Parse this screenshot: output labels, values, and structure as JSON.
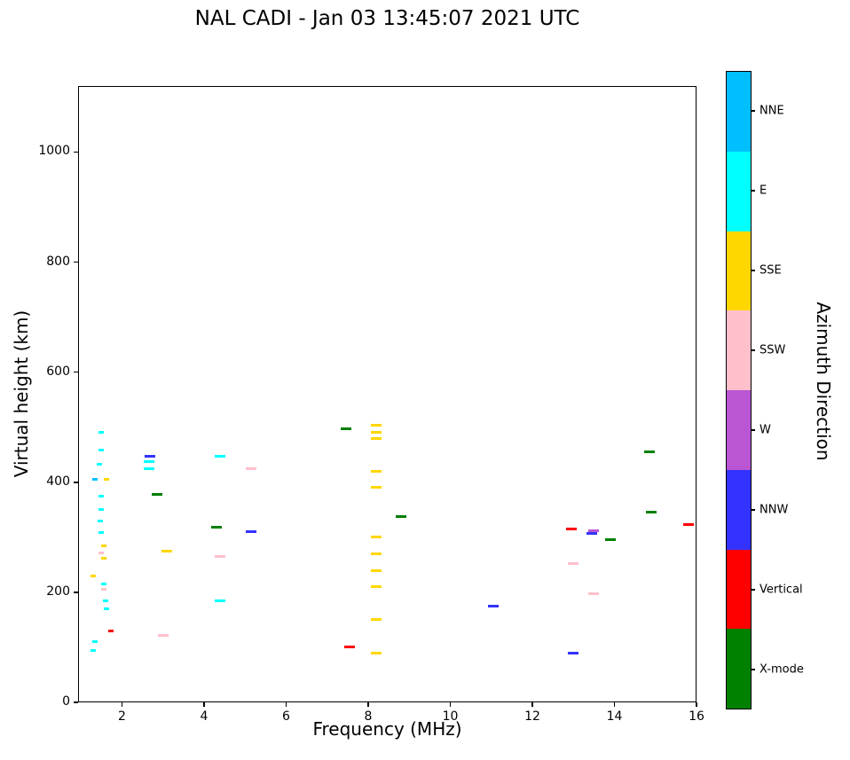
{
  "chart": {
    "title": "NAL CADI - Jan 03 13:45:07 2021 UTC",
    "xlabel": "Frequency (MHz)",
    "ylabel": "Virtual height (km)",
    "colorbar_label": "Azimuth Direction"
  },
  "chart_data": {
    "type": "scatter",
    "title": "NAL CADI - Jan 03 13:45:07 2021 UTC",
    "xlabel": "Frequency (MHz)",
    "ylabel": "Virtual height (km)",
    "xlim": [
      0.93,
      16
    ],
    "ylim": [
      0,
      1120
    ],
    "xticks": [
      2,
      4,
      6,
      8,
      10,
      12,
      14,
      16
    ],
    "yticks": [
      0,
      200,
      400,
      600,
      800,
      1000
    ],
    "grid": false,
    "marker": "horizontal-dash",
    "legend": {
      "title": "Azimuth Direction",
      "position": "right-colorbar",
      "entries": [
        {
          "label": "NNE",
          "color": "#00BFFF"
        },
        {
          "label": "E",
          "color": "#00FFFF"
        },
        {
          "label": "SSE",
          "color": "#FFD700"
        },
        {
          "label": "SSW",
          "color": "#FFC0CB"
        },
        {
          "label": "W",
          "color": "#BA55D3"
        },
        {
          "label": "NNW",
          "color": "#3333FF"
        },
        {
          "label": "Vertical",
          "color": "#FF0000"
        },
        {
          "label": "X-mode",
          "color": "#008000"
        }
      ]
    },
    "series": [
      {
        "name": "NNE",
        "color": "#00BFFF",
        "points": [
          [
            1.35,
            405
          ]
        ]
      },
      {
        "name": "E",
        "color": "#00FFFF",
        "points": [
          [
            1.5,
            490
          ],
          [
            1.5,
            458
          ],
          [
            1.45,
            432
          ],
          [
            1.5,
            375
          ],
          [
            1.5,
            350
          ],
          [
            1.48,
            330
          ],
          [
            1.5,
            308
          ],
          [
            1.55,
            215
          ],
          [
            1.6,
            185
          ],
          [
            1.62,
            170
          ],
          [
            1.35,
            110
          ],
          [
            1.3,
            95
          ],
          [
            2.66,
            438
          ],
          [
            2.66,
            425
          ],
          [
            4.4,
            447
          ],
          [
            4.4,
            185
          ]
        ]
      },
      {
        "name": "SSE",
        "color": "#FFD700",
        "points": [
          [
            1.62,
            405
          ],
          [
            1.55,
            285
          ],
          [
            1.55,
            262
          ],
          [
            1.3,
            230
          ],
          [
            3.1,
            275
          ],
          [
            8.2,
            503
          ],
          [
            8.2,
            490
          ],
          [
            8.2,
            480
          ],
          [
            8.2,
            420
          ],
          [
            8.2,
            390
          ],
          [
            8.2,
            300
          ],
          [
            8.2,
            270
          ],
          [
            8.2,
            240
          ],
          [
            8.2,
            210
          ],
          [
            8.2,
            150
          ],
          [
            8.2,
            90
          ]
        ]
      },
      {
        "name": "SSW",
        "color": "#FFC0CB",
        "points": [
          [
            1.5,
            272
          ],
          [
            1.55,
            205
          ],
          [
            3.0,
            122
          ],
          [
            4.4,
            265
          ],
          [
            5.15,
            425
          ],
          [
            13.0,
            253
          ],
          [
            13.5,
            198
          ]
        ]
      },
      {
        "name": "W",
        "color": "#BA55D3",
        "points": [
          [
            13.5,
            312
          ]
        ]
      },
      {
        "name": "NNW",
        "color": "#3333FF",
        "points": [
          [
            2.68,
            448
          ],
          [
            5.15,
            310
          ],
          [
            11.05,
            175
          ],
          [
            13.0,
            90
          ],
          [
            13.45,
            307
          ]
        ]
      },
      {
        "name": "Vertical",
        "color": "#FF0000",
        "points": [
          [
            1.72,
            130
          ],
          [
            7.55,
            100
          ],
          [
            12.95,
            315
          ],
          [
            15.8,
            323
          ]
        ]
      },
      {
        "name": "X-mode",
        "color": "#008000",
        "points": [
          [
            2.85,
            378
          ],
          [
            4.3,
            318
          ],
          [
            7.45,
            497
          ],
          [
            8.8,
            337
          ],
          [
            13.9,
            295
          ],
          [
            14.85,
            455
          ],
          [
            14.9,
            345
          ]
        ]
      }
    ]
  }
}
